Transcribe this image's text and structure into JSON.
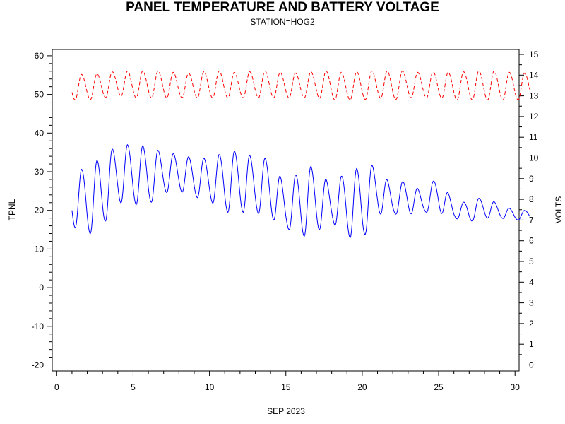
{
  "chart_data": {
    "type": "line",
    "title": "PANEL TEMPERATURE AND BATTERY VOLTAGE",
    "subtitle": "STATION=HOG2",
    "xlabel": "SEP 2023",
    "ylabel_left": "TPNL",
    "ylabel_right": "VOLTS",
    "xlim": [
      0,
      30
    ],
    "ylim_left": [
      -20,
      60
    ],
    "ylim_right": [
      0,
      15
    ],
    "x_ticks": [
      "0",
      "5",
      "10",
      "15",
      "20",
      "25",
      "30"
    ],
    "y_left_ticks": [
      "-20",
      "-10",
      "0",
      "10",
      "20",
      "30",
      "40",
      "50",
      "60"
    ],
    "y_right_ticks": [
      "0",
      "1",
      "2",
      "3",
      "4",
      "5",
      "6",
      "7",
      "8",
      "9",
      "10",
      "11",
      "12",
      "13",
      "14",
      "15"
    ],
    "series": [
      {
        "axis": "left",
        "color": "#0000ff",
        "style": "solid",
        "daily_min": [
          16,
          13.5,
          16,
          22,
          21.5,
          21.5,
          24.5,
          25,
          23.5,
          22.5,
          19.5,
          19.5,
          19.5,
          18,
          15.5,
          13,
          14.5,
          17,
          13,
          12.5,
          19,
          19,
          19,
          19.5,
          19.5,
          18,
          17,
          18,
          18,
          17.5
        ],
        "daily_max": [
          30,
          31,
          34,
          37,
          37,
          36.5,
          35,
          34.5,
          33.5,
          33.5,
          35,
          35.5,
          33.5,
          33.5,
          26,
          31,
          31.5,
          26,
          30.5,
          31,
          32,
          25.5,
          28.5,
          24,
          29.5,
          21.5,
          22.5,
          23.5,
          21.5,
          20
        ]
      },
      {
        "axis": "right",
        "color": "#ff0000",
        "style": "dashed",
        "daily_min": [
          12.8,
          12.8,
          12.9,
          13.0,
          12.9,
          12.9,
          12.9,
          12.9,
          12.9,
          12.9,
          12.9,
          12.9,
          12.9,
          12.9,
          12.9,
          12.9,
          12.9,
          12.8,
          12.8,
          12.8,
          12.9,
          12.8,
          12.9,
          12.9,
          12.9,
          12.8,
          12.8,
          12.8,
          12.8,
          12.8
        ],
        "daily_max": [
          14.1,
          14.0,
          14.1,
          14.2,
          14.2,
          14.2,
          14.2,
          14.1,
          14.1,
          14.2,
          14.2,
          14.1,
          14.2,
          14.2,
          14.1,
          14.1,
          14.2,
          14.2,
          14.1,
          14.2,
          14.2,
          14.2,
          14.2,
          14.1,
          14.2,
          14.1,
          14.2,
          14.2,
          14.2,
          14.1
        ]
      }
    ],
    "grid": false,
    "legend": "none"
  }
}
